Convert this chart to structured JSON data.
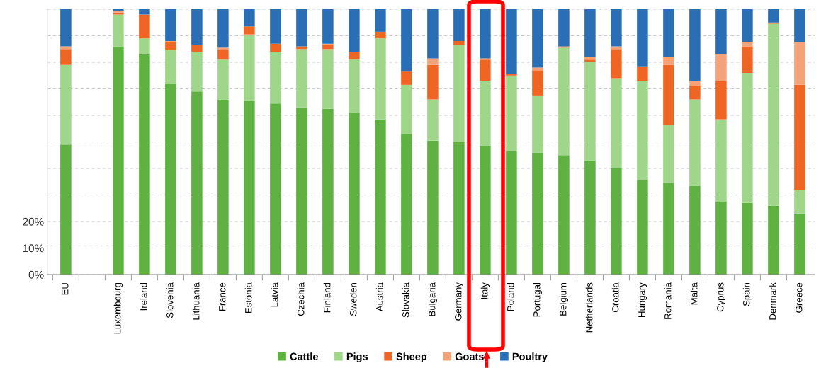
{
  "chart_data": {
    "type": "bar",
    "stacked": true,
    "categories": [
      "EU",
      null,
      "Luxembourg",
      "Ireland",
      "Slovenia",
      "Lithuania",
      "France",
      "Estonia",
      "Latvia",
      "Czechia",
      "Finland",
      "Sweden",
      "Austria",
      "Slovakia",
      "Bulgaria",
      "Germany",
      "Italy",
      "Poland",
      "Portugal",
      "Belgium",
      "Netherlands",
      "Croatia",
      "Hungary",
      "Romania",
      "Malta",
      "Cyprus",
      "Spain",
      "Denmark",
      "Greece"
    ],
    "series": [
      {
        "name": "Cattle",
        "color": "#5fb142",
        "values": [
          49,
          null,
          86,
          83,
          72,
          69,
          66,
          65.5,
          64.5,
          63,
          62.5,
          61,
          58.5,
          53,
          50.5,
          50,
          48.5,
          46.5,
          46,
          45,
          43,
          40,
          35.5,
          34.5,
          33.5,
          27.5,
          27,
          26,
          23
        ]
      },
      {
        "name": "Pigs",
        "color": "#9fd68a",
        "values": [
          30,
          null,
          12,
          6,
          12.5,
          15,
          15,
          25,
          19.5,
          22,
          22.5,
          20,
          30.5,
          18.5,
          15.5,
          36.5,
          24.5,
          28.5,
          21.5,
          40.5,
          37,
          34,
          37.5,
          22,
          32.5,
          31,
          49,
          68.5,
          9
        ]
      },
      {
        "name": "Sheep",
        "color": "#ef6524",
        "values": [
          6,
          null,
          0.7,
          9,
          3,
          2.5,
          4,
          3,
          3,
          1,
          1.5,
          3,
          2.5,
          5,
          13,
          1.5,
          8,
          0.5,
          9.5,
          0.5,
          1,
          11,
          5.5,
          22.5,
          5,
          14.5,
          10,
          0.5,
          39.5
        ]
      },
      {
        "name": "Goats",
        "color": "#f4a27a",
        "values": [
          1,
          null,
          0.5,
          0,
          0.5,
          0,
          0.5,
          0,
          0,
          0,
          0.5,
          0,
          0,
          0,
          2.5,
          0,
          0.5,
          0,
          1,
          0,
          1,
          1,
          0,
          3,
          2,
          10,
          1.5,
          0,
          16
        ]
      },
      {
        "name": "Poultry",
        "color": "#2a6fb5",
        "values": [
          14,
          null,
          0.8,
          2,
          12,
          13.5,
          14.5,
          6.5,
          13,
          14,
          13,
          16,
          8.5,
          23.5,
          18.5,
          12,
          18.5,
          24.5,
          22,
          14,
          18,
          14,
          21.5,
          18,
          27,
          17,
          12.5,
          5,
          12.5
        ]
      }
    ],
    "ylim": [
      0,
      100
    ],
    "yticks": [
      {
        "value": 0,
        "label": "0%"
      },
      {
        "value": 10,
        "label": "10%"
      },
      {
        "value": 20,
        "label": "20%"
      },
      {
        "value": 30,
        "label": null
      },
      {
        "value": 40,
        "label": null
      },
      {
        "value": 50,
        "label": null
      },
      {
        "value": 60,
        "label": null
      },
      {
        "value": 70,
        "label": null
      },
      {
        "value": 80,
        "label": null
      },
      {
        "value": 90,
        "label": null
      },
      {
        "value": 100,
        "label": null
      }
    ],
    "grid": "y",
    "legend": "bottom"
  }
}
